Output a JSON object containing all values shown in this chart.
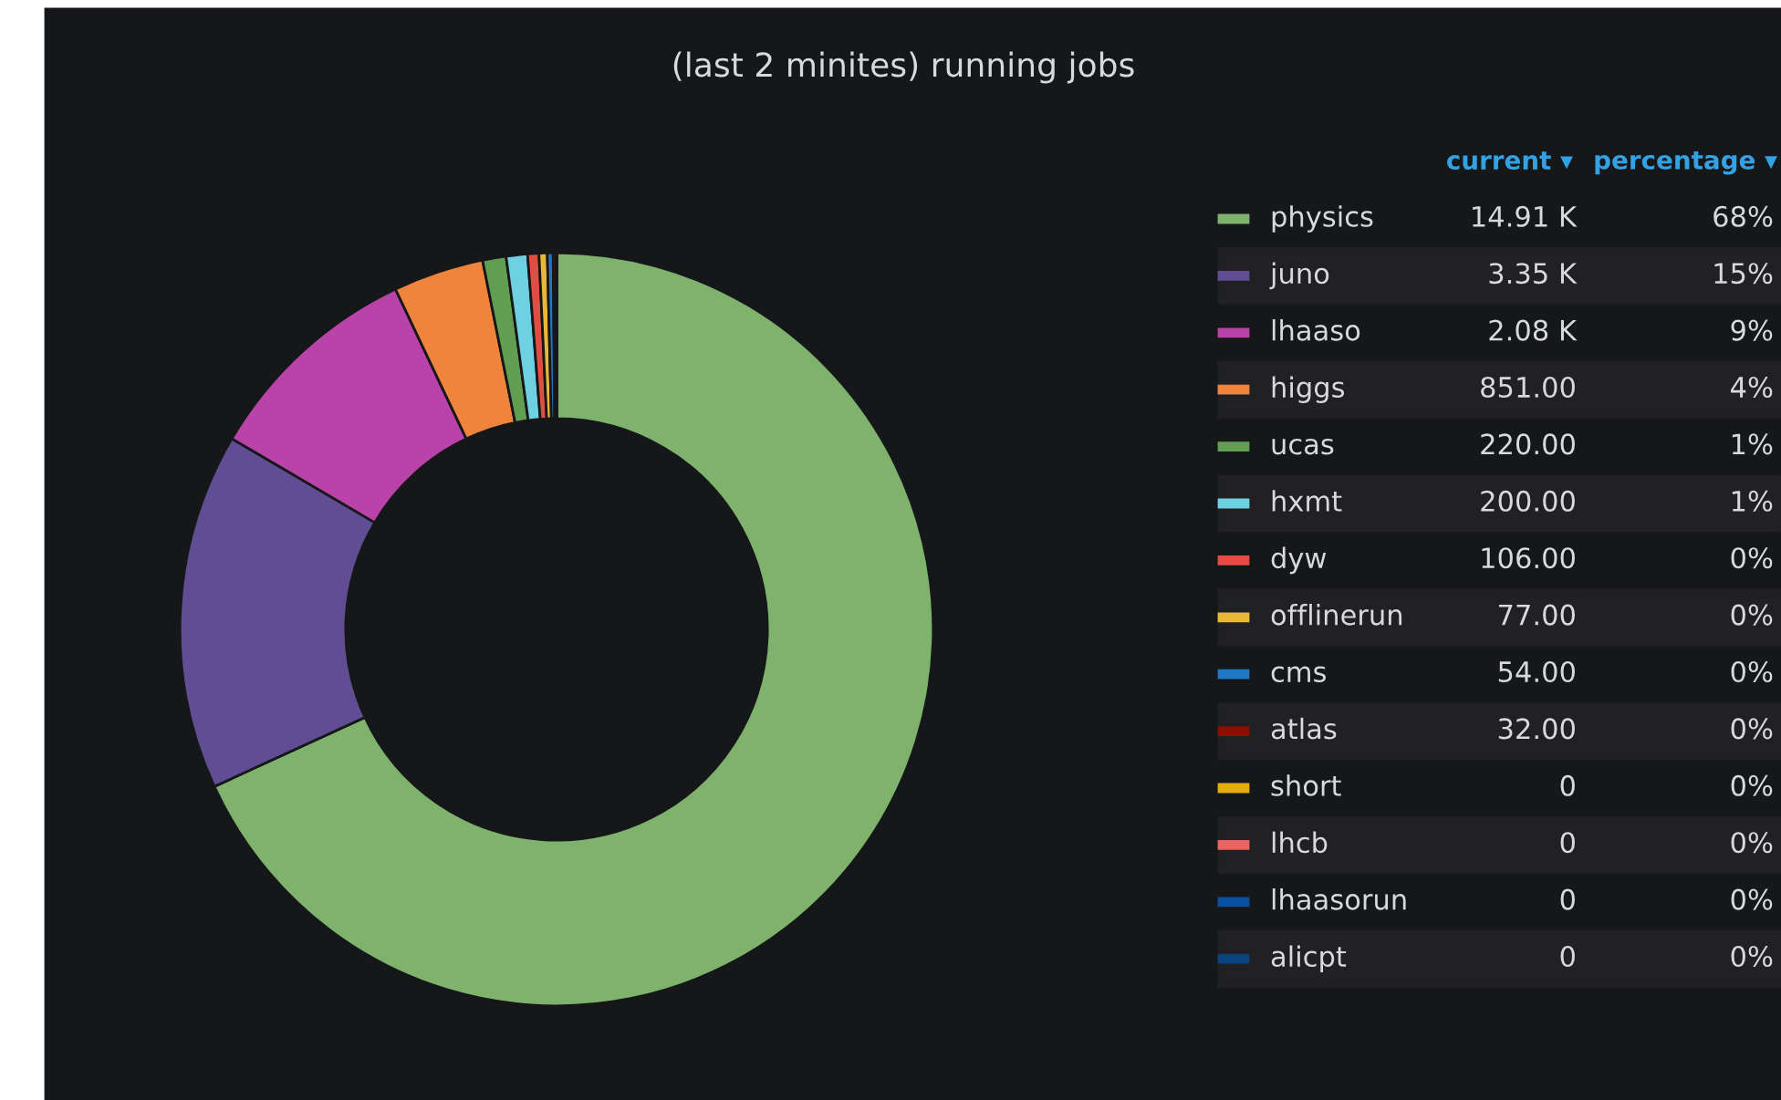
{
  "chart_data": {
    "type": "donut",
    "title": "(last 2 minites) running jobs",
    "categories": [
      "physics",
      "juno",
      "lhaaso",
      "higgs",
      "ucas",
      "hxmt",
      "dyw",
      "offlinerun",
      "cms",
      "atlas",
      "short",
      "lhcb",
      "lhaasorun",
      "alicpt"
    ],
    "values": [
      14910,
      3350,
      2080,
      851,
      220,
      200,
      106,
      77,
      54,
      32,
      0,
      0,
      0,
      0
    ],
    "value_labels": [
      "14.91 K",
      "3.35 K",
      "2.08 K",
      "851.00",
      "220.00",
      "200.00",
      "106.00",
      "77.00",
      "54.00",
      "32.00",
      "0",
      "0",
      "0",
      "0"
    ],
    "colors": [
      "#7eb26d",
      "#614d93",
      "#ba43a9",
      "#ef843c",
      "#629e51",
      "#6ed0e0",
      "#e24d42",
      "#eab839",
      "#1f78c1",
      "#890f02",
      "#e5ac0e",
      "#ea6460",
      "#0a50a1",
      "#0a437c"
    ],
    "annotations": [
      "current ▾",
      "percentage ▾",
      "68%",
      "15%",
      "9%",
      "4%",
      "1%",
      "1%",
      "0%",
      "0%",
      "0%",
      "0%",
      "0%",
      "0%",
      "0%",
      "0%"
    ],
    "legend": "right"
  }
}
